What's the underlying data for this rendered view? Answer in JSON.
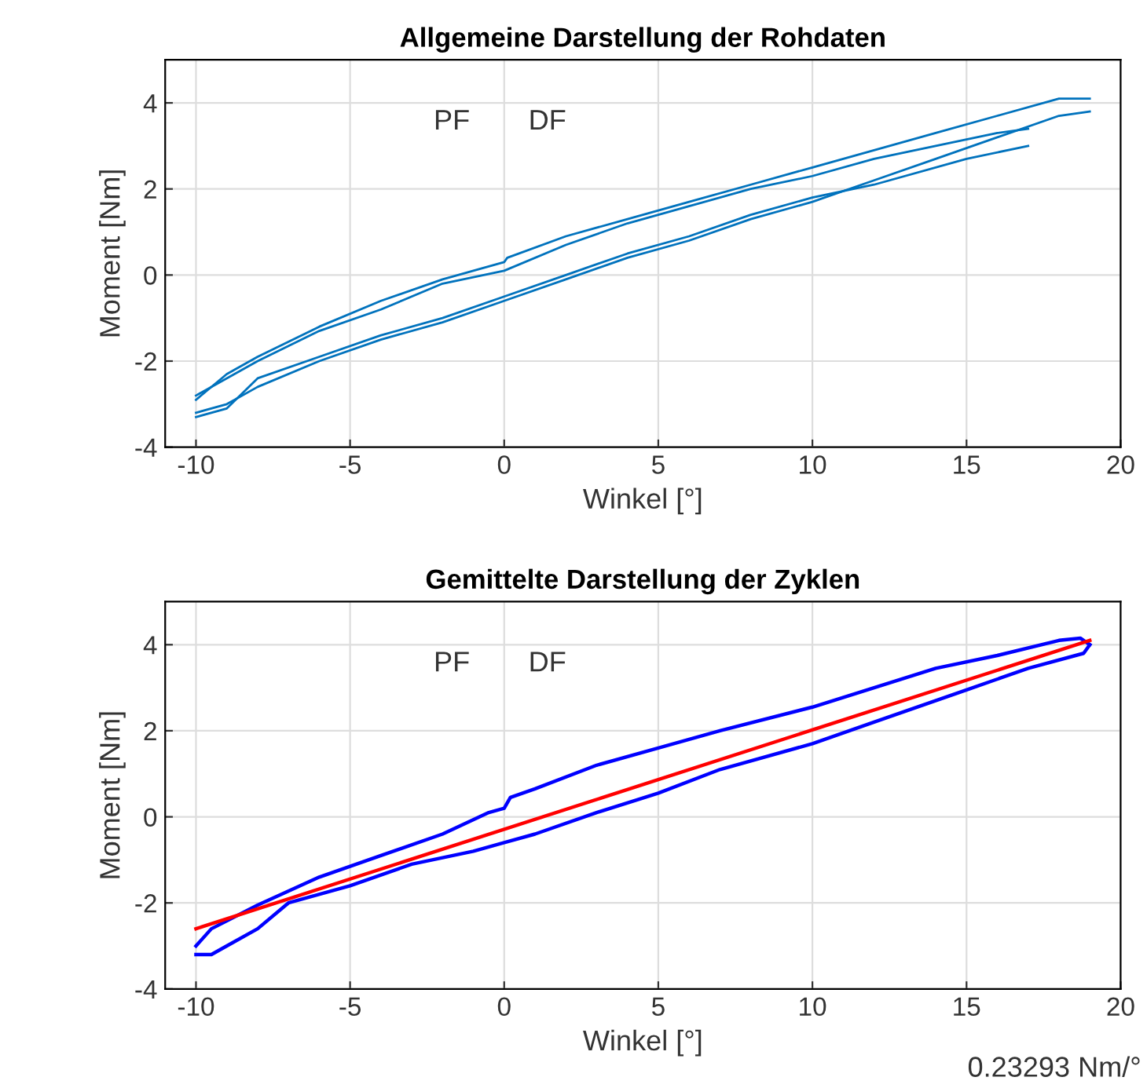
{
  "chart_data": [
    {
      "type": "line",
      "title": "Allgemeine Darstellung der Rohdaten",
      "xlabel": "Winkel [°]",
      "ylabel": "Moment [Nm]",
      "xlim": [
        -11,
        20
      ],
      "ylim": [
        -4,
        5
      ],
      "xticks": [
        -10,
        -5,
        0,
        5,
        10,
        15,
        20
      ],
      "yticks": [
        -4,
        -2,
        0,
        2,
        4
      ],
      "grid": true,
      "marker": "none",
      "line_style": "solid",
      "annotations": [
        "PF",
        "DF"
      ],
      "series": [
        {
          "color": "#0072bd",
          "x": [
            -10,
            -9,
            -8,
            -6,
            -4,
            -2,
            0,
            0.1,
            2,
            4,
            6,
            8,
            10,
            12,
            14,
            16,
            18,
            19
          ],
          "values": [
            -2.9,
            -2.3,
            -1.9,
            -1.2,
            -0.6,
            -0.1,
            0.3,
            0.4,
            0.9,
            1.3,
            1.7,
            2.1,
            2.5,
            2.9,
            3.3,
            3.7,
            4.1,
            4.1
          ]
        },
        {
          "color": "#0072bd",
          "x": [
            -10,
            -9,
            -8,
            -6,
            -4,
            -2,
            0,
            2,
            4,
            6,
            8,
            10,
            12,
            14,
            16,
            18,
            19
          ],
          "values": [
            -3.2,
            -3.0,
            -2.6,
            -2.0,
            -1.5,
            -1.1,
            -0.6,
            -0.1,
            0.4,
            0.8,
            1.3,
            1.7,
            2.2,
            2.7,
            3.2,
            3.7,
            3.8
          ]
        },
        {
          "color": "#0072bd",
          "x": [
            -10,
            -8,
            -6,
            -4,
            -2,
            0,
            2,
            4,
            6,
            8,
            10,
            12,
            14,
            16,
            17
          ],
          "values": [
            -2.8,
            -2.0,
            -1.3,
            -0.8,
            -0.2,
            0.1,
            0.7,
            1.2,
            1.6,
            2.0,
            2.3,
            2.7,
            3.0,
            3.3,
            3.4
          ]
        },
        {
          "color": "#0072bd",
          "x": [
            -10,
            -9,
            -8,
            -6,
            -4,
            -2,
            0,
            2,
            4,
            6,
            8,
            10,
            12,
            15,
            17
          ],
          "values": [
            -3.3,
            -3.1,
            -2.4,
            -1.9,
            -1.4,
            -1.0,
            -0.5,
            0.0,
            0.5,
            0.9,
            1.4,
            1.8,
            2.1,
            2.7,
            3.0
          ]
        }
      ]
    },
    {
      "type": "line",
      "title": "Gemittelte Darstellung der Zyklen",
      "xlabel": "Winkel [°]",
      "ylabel": "Moment [Nm]",
      "xlim": [
        -11,
        20
      ],
      "ylim": [
        -4,
        5
      ],
      "xticks": [
        -10,
        -5,
        0,
        5,
        10,
        15,
        20
      ],
      "yticks": [
        -4,
        -2,
        0,
        2,
        4
      ],
      "grid": true,
      "marker": "none",
      "line_style": "solid",
      "annotations": [
        "PF",
        "DF",
        "0.23293 Nm/°"
      ],
      "series": [
        {
          "color": "#0000ff",
          "x": [
            -10,
            -9.5,
            -8,
            -6,
            -4,
            -2,
            -0.5,
            0,
            0.2,
            1,
            3,
            5,
            7,
            10,
            12,
            14,
            16,
            18,
            18.7,
            19
          ],
          "values": [
            -3.0,
            -2.6,
            -2.05,
            -1.4,
            -0.9,
            -0.4,
            0.1,
            0.2,
            0.45,
            0.65,
            1.2,
            1.6,
            2.0,
            2.55,
            3.0,
            3.45,
            3.75,
            4.1,
            4.15,
            4.0
          ]
        },
        {
          "color": "#0000ff",
          "x": [
            -10,
            -9.5,
            -9,
            -8,
            -7,
            -5,
            -3,
            -1,
            0,
            1,
            3,
            5,
            7,
            10,
            12,
            15,
            17,
            18.8,
            19
          ],
          "values": [
            -3.2,
            -3.2,
            -3.0,
            -2.6,
            -2.0,
            -1.6,
            -1.1,
            -0.8,
            -0.6,
            -0.4,
            0.1,
            0.55,
            1.1,
            1.7,
            2.2,
            2.95,
            3.45,
            3.8,
            4.0
          ]
        },
        {
          "color": "#ff0000",
          "x": [
            -10,
            19
          ],
          "values": [
            -2.6,
            4.1
          ]
        }
      ]
    }
  ]
}
